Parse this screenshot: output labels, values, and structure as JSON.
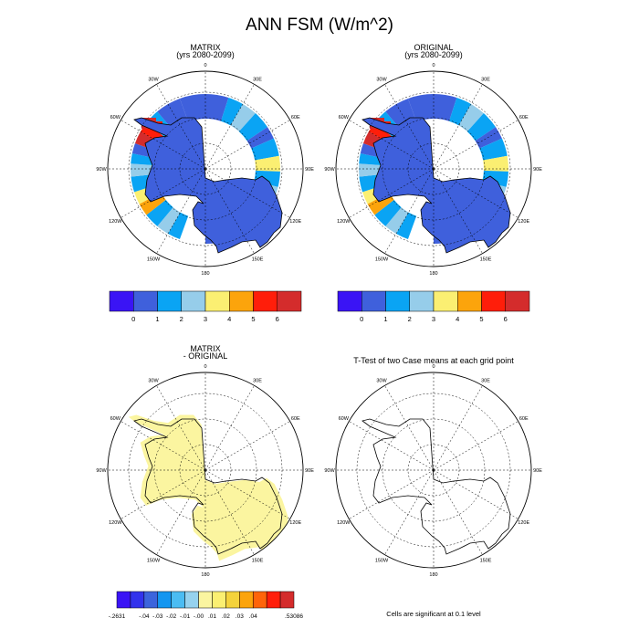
{
  "title": "ANN FSM (W/m^2)",
  "panels": [
    {
      "title": "MATRIX",
      "subtitle": "(yrs 2080-2099)"
    },
    {
      "title": "ORIGINAL",
      "subtitle": "(yrs 2080-2099)"
    },
    {
      "title": "MATRIX",
      "subtitle": "- ORIGINAL"
    },
    {
      "title": "T-Test of two Case means at each grid point",
      "subtitle": ""
    }
  ],
  "lon_labels": [
    "0",
    "30E",
    "60E",
    "90E",
    "120E",
    "150E",
    "180",
    "150W",
    "120W",
    "90W",
    "60W",
    "30W"
  ],
  "colorbar_top": {
    "colors": [
      "#3a14f5",
      "#3f60dc",
      "#0aa4f4",
      "#96cdea",
      "#fbef72",
      "#fca40c",
      "#ff1e0a",
      "#d42c2c"
    ],
    "labels": [
      "0",
      "1",
      "2",
      "3",
      "4",
      "5",
      "6"
    ]
  },
  "colorbar_diff": {
    "colors": [
      "#3a14f5",
      "#3232ec",
      "#3c64dc",
      "#1496f0",
      "#4bbcf2",
      "#96d2ee",
      "#fbf5a0",
      "#fbef72",
      "#f4d23c",
      "#fca40c",
      "#ff640a",
      "#ff1e0a",
      "#d42c2c"
    ],
    "labels": [
      "-.2631",
      "-.04",
      "-.03",
      "-.02",
      "-.01",
      "-.00",
      ".01",
      ".02",
      ".03",
      ".04",
      ".53086"
    ]
  },
  "footnote": "Cells are significant at 0.1 level",
  "chart_data": [
    {
      "type": "heatmap",
      "title": "MATRIX",
      "subtitle": "(yrs 2080-2099)",
      "projection": "south polar stereographic",
      "value_range": [
        0,
        6
      ],
      "description_values": {
        "continent_interior": 0.5,
        "coastal_ring": [
          1,
          2,
          3,
          4,
          5,
          6
        ]
      }
    },
    {
      "type": "heatmap",
      "title": "ORIGINAL",
      "subtitle": "(yrs 2080-2099)",
      "projection": "south polar stereographic",
      "value_range": [
        0,
        6
      ],
      "description_values": {
        "continent_interior": 0.5,
        "coastal_ring": [
          1,
          2,
          3,
          4,
          5,
          6
        ]
      }
    },
    {
      "type": "heatmap",
      "title": "MATRIX",
      "subtitle": "- ORIGINAL",
      "projection": "south polar stereographic",
      "value_range": [
        -0.2631,
        0.53086
      ],
      "description_values": {
        "ice_region": 0.005
      }
    },
    {
      "type": "heatmap",
      "title": "T-Test of two Case means at each grid point",
      "projection": "south polar stereographic",
      "significant_cells": 0
    }
  ]
}
